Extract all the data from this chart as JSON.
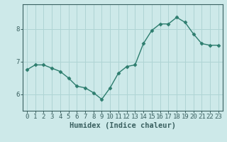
{
  "x": [
    0,
    1,
    2,
    3,
    4,
    5,
    6,
    7,
    8,
    9,
    10,
    11,
    12,
    13,
    14,
    15,
    16,
    17,
    18,
    19,
    20,
    21,
    22,
    23
  ],
  "y": [
    6.75,
    6.9,
    6.9,
    6.8,
    6.7,
    6.5,
    6.25,
    6.2,
    6.05,
    5.85,
    6.2,
    6.65,
    6.85,
    6.9,
    7.55,
    7.95,
    8.15,
    8.15,
    8.35,
    8.2,
    7.85,
    7.55,
    7.5,
    7.5
  ],
  "line_color": "#2d7d6e",
  "marker": "D",
  "marker_size": 2.5,
  "bg_color": "#cde9e9",
  "grid_color": "#afd4d4",
  "axis_color": "#3a6060",
  "xlabel": "Humidex (Indice chaleur)",
  "xlim": [
    -0.5,
    23.5
  ],
  "ylim": [
    5.5,
    8.75
  ],
  "yticks": [
    6,
    7,
    8
  ],
  "xticks": [
    0,
    1,
    2,
    3,
    4,
    5,
    6,
    7,
    8,
    9,
    10,
    11,
    12,
    13,
    14,
    15,
    16,
    17,
    18,
    19,
    20,
    21,
    22,
    23
  ],
  "label_fontsize": 7.5,
  "tick_fontsize": 6.5
}
